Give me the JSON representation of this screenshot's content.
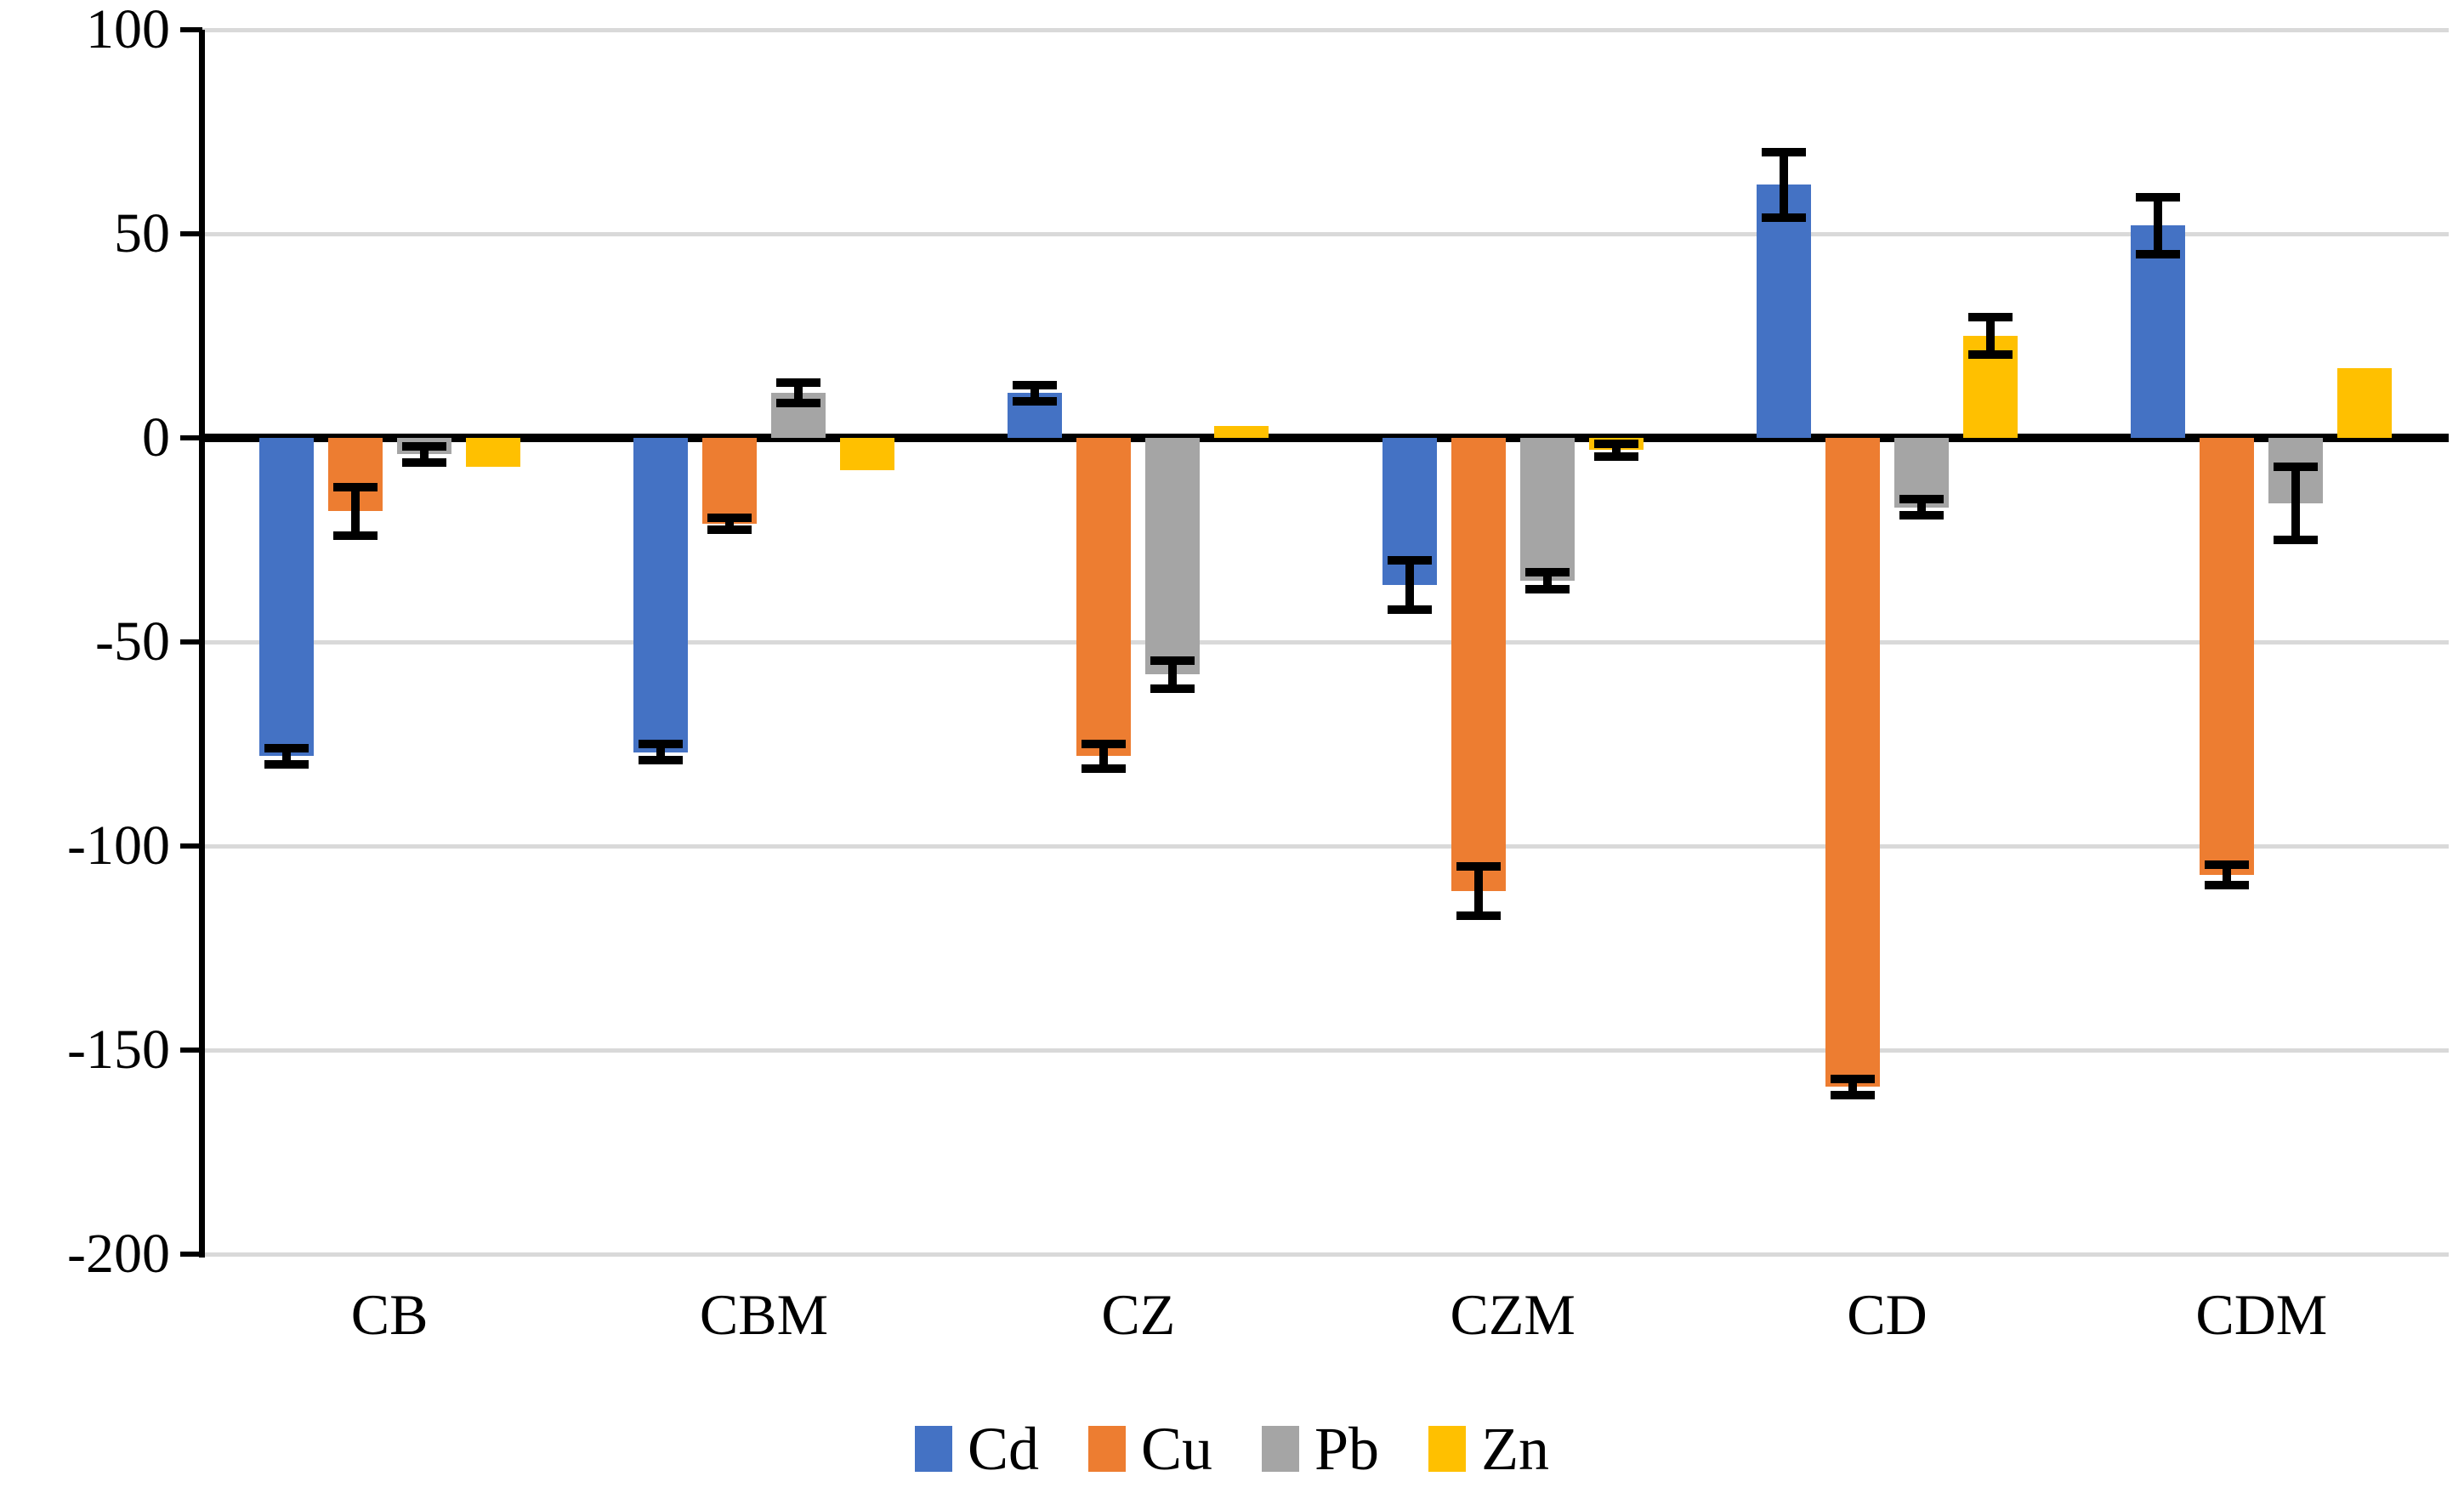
{
  "chart_data": {
    "type": "bar",
    "title": "",
    "categories": [
      "CB",
      "CBM",
      "CZ",
      "CZM",
      "CD",
      "CDM"
    ],
    "series": [
      {
        "name": "Cd",
        "color": "#4472C4",
        "values": [
          -78,
          -77,
          11,
          -36,
          62,
          52
        ],
        "errors": [
          2,
          2,
          2,
          6,
          8,
          7
        ]
      },
      {
        "name": "Cu",
        "color": "#ED7D31",
        "values": [
          -18,
          -21,
          -78,
          -111,
          -159,
          -107
        ],
        "errors": [
          6,
          1.5,
          3,
          6,
          2,
          2.5
        ]
      },
      {
        "name": "Pb",
        "color": "#A5A5A5",
        "values": [
          -4,
          11,
          -58,
          -35,
          -17,
          -16
        ],
        "errors": [
          2,
          2.5,
          3.5,
          2,
          2,
          9
        ]
      },
      {
        "name": "Zn",
        "color": "#FFC000",
        "values": [
          -7,
          -8,
          3,
          -3,
          25,
          17
        ],
        "errors": [
          0,
          0,
          0,
          1.5,
          4.5,
          0
        ]
      }
    ],
    "y_axis": {
      "min": -200,
      "max": 100,
      "step": 50,
      "tick_labels": [
        "100",
        "50",
        "0",
        "-50",
        "-100",
        "-150",
        "-200"
      ]
    },
    "x_axis": {
      "tick_labels": [
        "CB",
        "CBM",
        "CZ",
        "CZM",
        "CD",
        "CDM"
      ]
    },
    "legend": {
      "position": "bottom",
      "entries": [
        "Cd",
        "Cu",
        "Pb",
        "Zn"
      ]
    },
    "grid": true,
    "colors": {
      "gridline": "#D9D9D9",
      "axis": "#000000",
      "error_bar": "#000000",
      "background": "#FFFFFF"
    }
  }
}
